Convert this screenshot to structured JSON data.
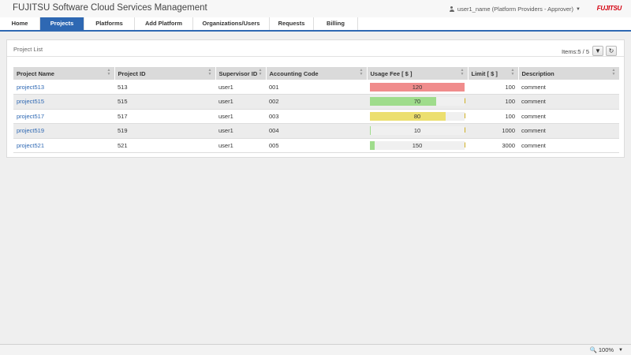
{
  "app_title": "FUJITSU Software Cloud Services Management",
  "user_label": "user1_name (Platform Providers - Approver)",
  "brand": {
    "logo_text": "FUJITSU",
    "color": "#d4000e"
  },
  "accent_color": "#2e68b3",
  "nav": {
    "items": [
      {
        "label": "Home",
        "active": false
      },
      {
        "label": "Projects",
        "active": true
      },
      {
        "label": "Platforms",
        "active": false
      },
      {
        "label": "Add Platform",
        "active": false
      },
      {
        "label": "Organizations/Users",
        "active": false
      },
      {
        "label": "Requests",
        "active": false
      },
      {
        "label": "Billing",
        "active": false
      }
    ]
  },
  "panel": {
    "title": "Project List",
    "items_count": "Items:5 / 5",
    "filter_icon": "filter-icon",
    "refresh_icon": "refresh-icon"
  },
  "table": {
    "columns": [
      "Project Name",
      "Project ID",
      "Supervisor ID",
      "Accounting Code",
      "Usage Fee [ $ ]",
      "Limit [ $ ]",
      "Description"
    ],
    "rows": [
      {
        "name": "project513",
        "id": "513",
        "supervisor": "user1",
        "code": "001",
        "usage": "120",
        "usage_value": 120,
        "limit": "100",
        "limit_value": 100,
        "description": "comment",
        "bar_color": "#f08c8c"
      },
      {
        "name": "project515",
        "id": "515",
        "supervisor": "user1",
        "code": "002",
        "usage": "70",
        "usage_value": 70,
        "limit": "100",
        "limit_value": 100,
        "description": "comment",
        "bar_color": "#9fdc8c"
      },
      {
        "name": "project517",
        "id": "517",
        "supervisor": "user1",
        "code": "003",
        "usage": "80",
        "usage_value": 80,
        "limit": "100",
        "limit_value": 100,
        "description": "comment",
        "bar_color": "#ecdf6f"
      },
      {
        "name": "project519",
        "id": "519",
        "supervisor": "user1",
        "code": "004",
        "usage": "10",
        "usage_value": 10,
        "limit": "1000",
        "limit_value": 1000,
        "description": "comment",
        "bar_color": "#9fdc8c"
      },
      {
        "name": "project521",
        "id": "521",
        "supervisor": "user1",
        "code": "005",
        "usage": "150",
        "usage_value": 150,
        "limit": "3000",
        "limit_value": 3000,
        "description": "comment",
        "bar_color": "#9fdc8c"
      }
    ]
  },
  "statusbar": {
    "zoom": "100%"
  }
}
